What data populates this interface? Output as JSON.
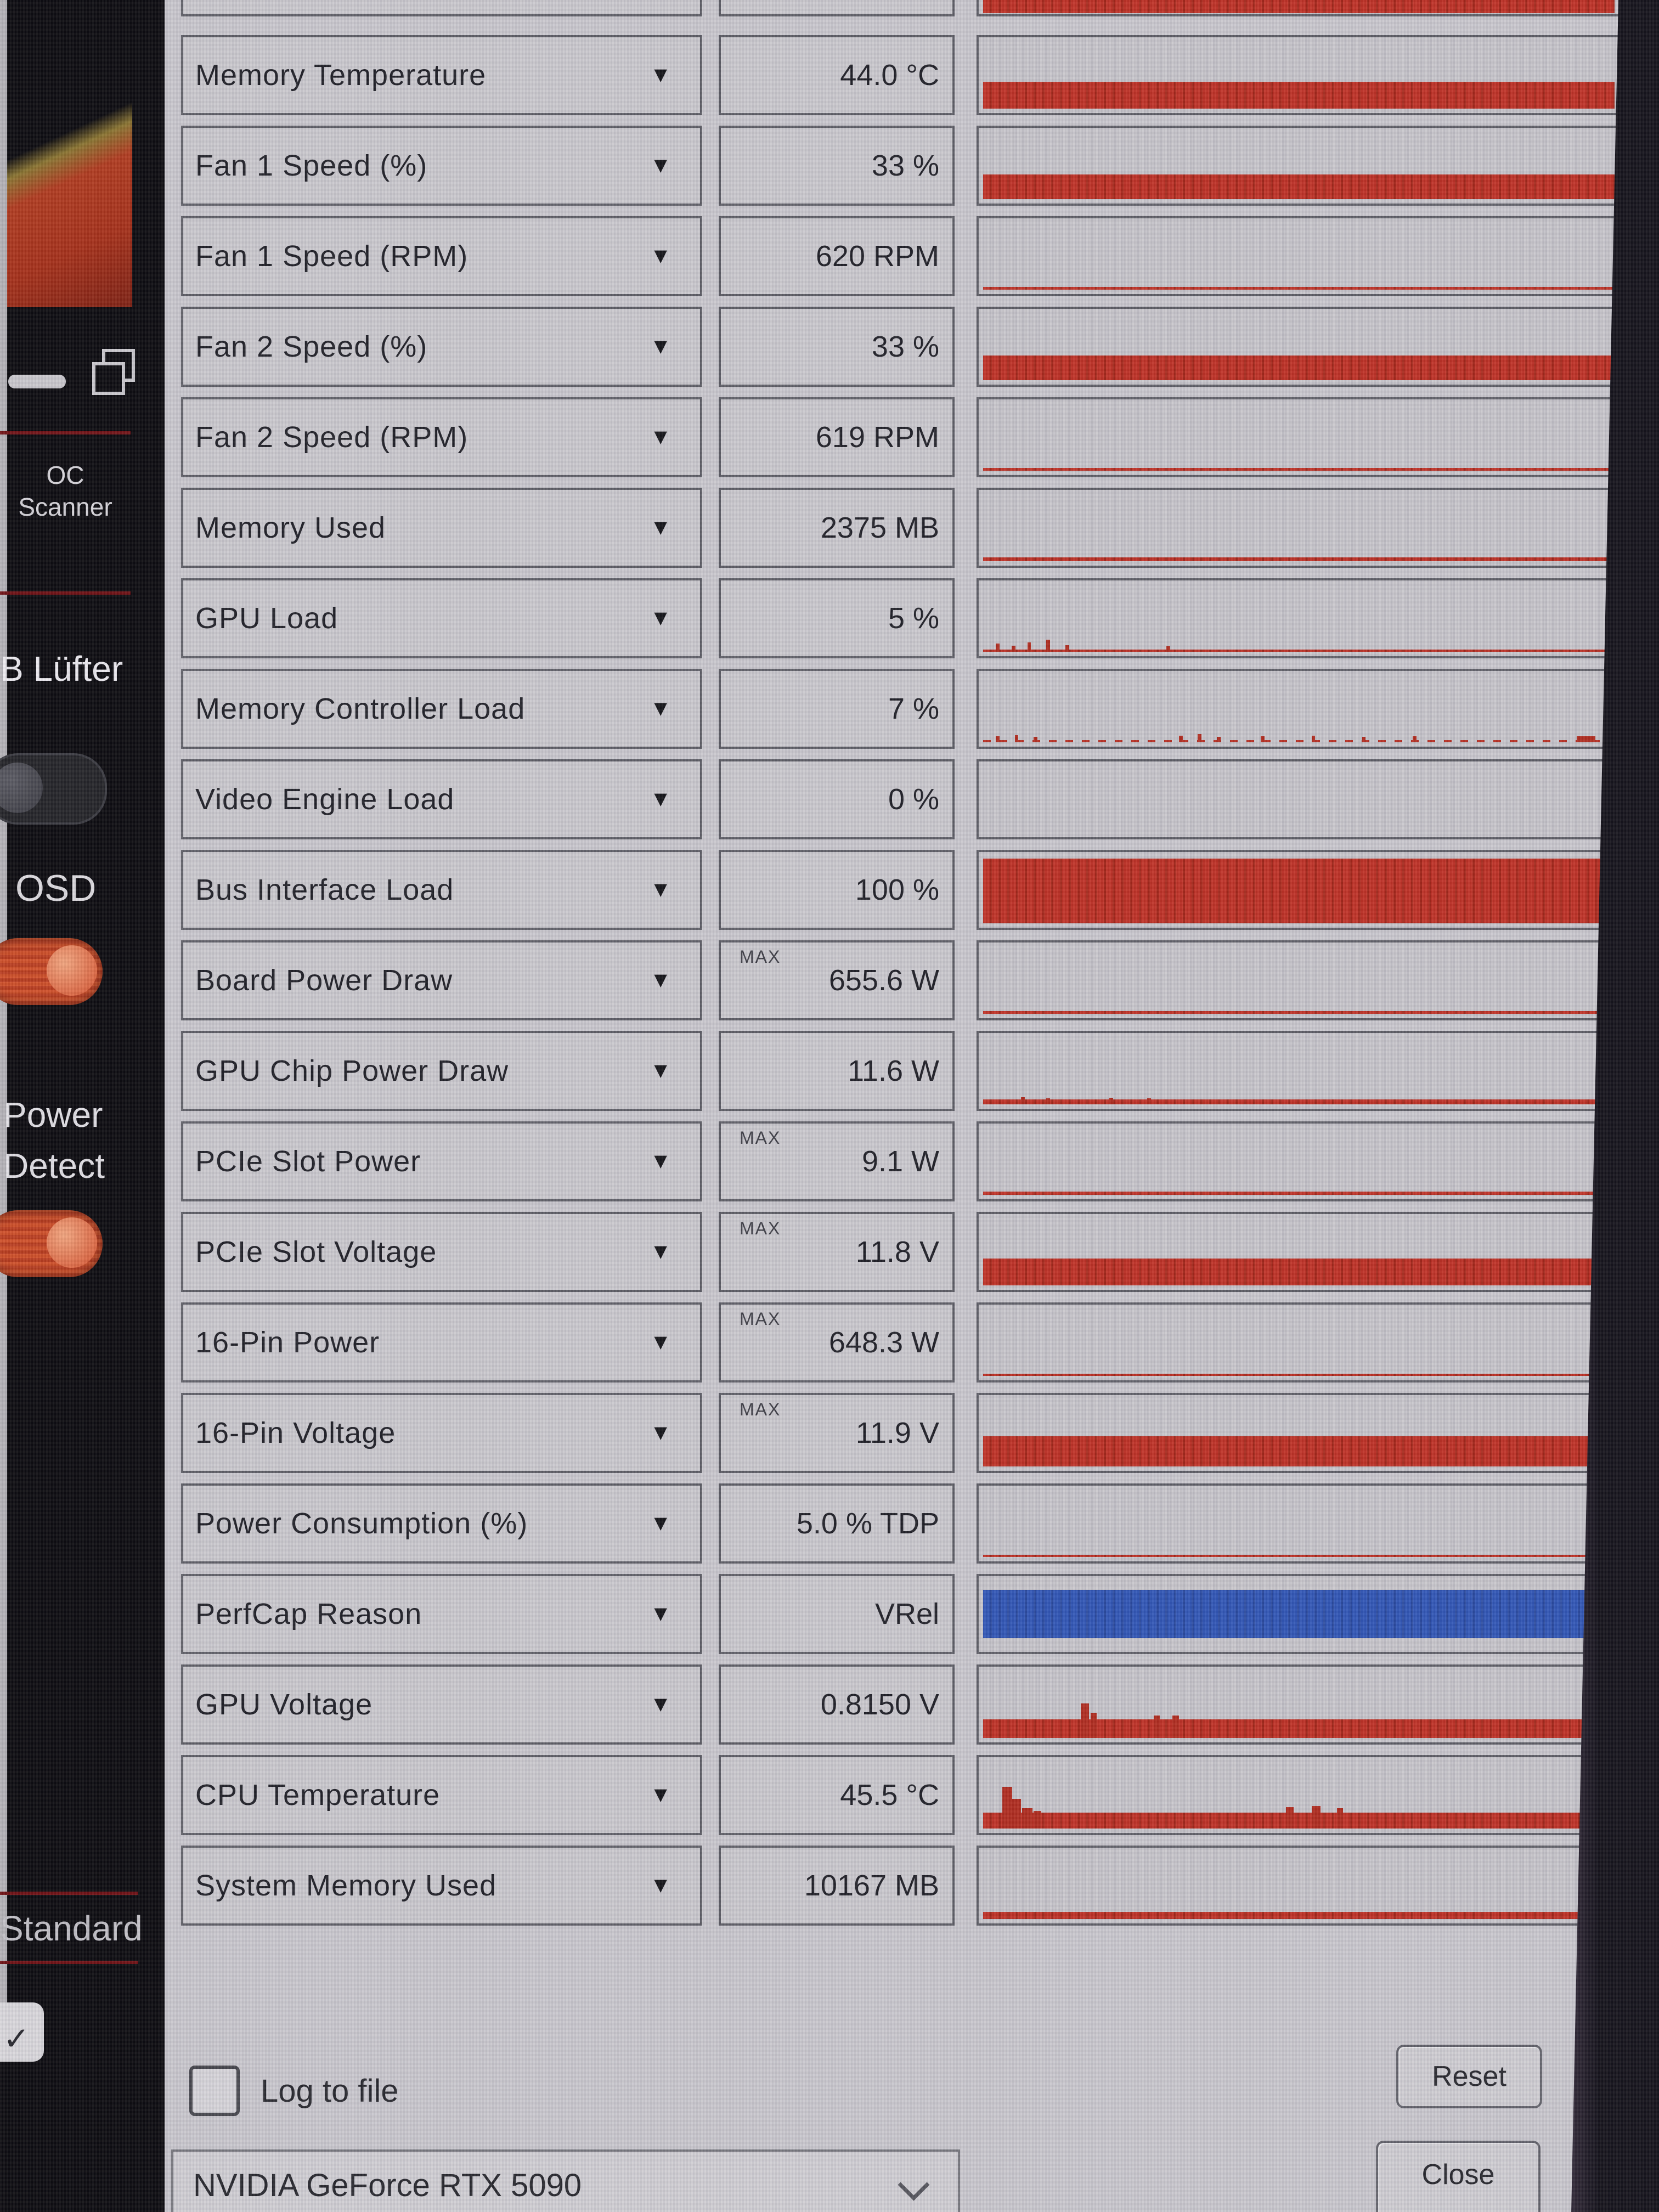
{
  "app": {
    "log_to_file_label": "Log to file",
    "device_selector_value": "NVIDIA GeForce RTX 5090",
    "reset_button_label": "Reset",
    "close_button_label": "Close"
  },
  "sidebar": {
    "oc_scanner_line1": "OC",
    "oc_scanner_line2": "Scanner",
    "lufter_label": "B Lüfter",
    "osd_label": "OSD",
    "power_detect_line1": "Power",
    "power_detect_line2": "Detect",
    "standard_label": "Standard",
    "check_icon_glyph": "✓",
    "separator_color": "#701114",
    "toggle_on_color": "#c8441f"
  },
  "colors": {
    "bar_red": "#bf3125",
    "bar_blue": "#3156b6",
    "window_bg": "#c9c7cd",
    "cell_border": "#5e5e66"
  },
  "sensors": {
    "value_max_tag": "MAX",
    "dropdown_icon": "▼",
    "rows": [
      {
        "label": "Memory Temperature",
        "value": "44.0 °C",
        "max": false,
        "graph": {
          "color": "red",
          "fill": 40,
          "spikes": []
        }
      },
      {
        "label": "Fan 1 Speed (%)",
        "value": "33 %",
        "max": false,
        "graph": {
          "color": "red",
          "fill": 37,
          "spikes": []
        }
      },
      {
        "label": "Fan 1 Speed (RPM)",
        "value": "620 RPM",
        "max": false,
        "graph": {
          "color": "red",
          "fill": 4,
          "spikes": []
        }
      },
      {
        "label": "Fan 2 Speed (%)",
        "value": "33 %",
        "max": false,
        "graph": {
          "color": "red",
          "fill": 37,
          "spikes": []
        }
      },
      {
        "label": "Fan 2 Speed (RPM)",
        "value": "619 RPM",
        "max": false,
        "graph": {
          "color": "red",
          "fill": 4,
          "spikes": []
        }
      },
      {
        "label": "Memory Used",
        "value": "2375 MB",
        "max": false,
        "graph": {
          "color": "red",
          "fill": 6,
          "spikes": []
        }
      },
      {
        "label": "GPU Load",
        "value": "5 %",
        "max": false,
        "graph": {
          "color": "red",
          "fill": 3,
          "spikes": [
            {
              "x": 2,
              "h": 12
            },
            {
              "x": 4.5,
              "h": 9
            },
            {
              "x": 7,
              "h": 14
            },
            {
              "x": 10,
              "h": 18
            },
            {
              "x": 13,
              "h": 10
            },
            {
              "x": 29,
              "h": 8
            }
          ]
        }
      },
      {
        "label": "Memory Controller Load",
        "value": "7 %",
        "max": false,
        "graph": {
          "color": "red",
          "fill": 3,
          "dashed": true,
          "spikes": [
            {
              "x": 2,
              "h": 9
            },
            {
              "x": 5,
              "h": 11
            },
            {
              "x": 8,
              "h": 8
            },
            {
              "x": 31,
              "h": 10
            },
            {
              "x": 34,
              "h": 12
            },
            {
              "x": 37,
              "h": 8
            },
            {
              "x": 44,
              "h": 9
            },
            {
              "x": 52,
              "h": 10
            },
            {
              "x": 60,
              "h": 8
            },
            {
              "x": 68,
              "h": 9
            },
            {
              "x": 94,
              "h": 9,
              "w": 3
            }
          ]
        }
      },
      {
        "label": "Video Engine Load",
        "value": "0 %",
        "max": false,
        "graph": {
          "color": "red",
          "fill": 0,
          "spikes": []
        }
      },
      {
        "label": "Bus Interface Load",
        "value": "100 %",
        "max": false,
        "graph": {
          "color": "red",
          "fill": 97,
          "spikes": []
        }
      },
      {
        "label": "Board Power Draw",
        "value": "655.6 W",
        "max": true,
        "graph": {
          "color": "red",
          "fill": 4,
          "spikes": []
        }
      },
      {
        "label": "GPU Chip Power Draw",
        "value": "11.6 W",
        "max": false,
        "graph": {
          "color": "red",
          "fill": 7,
          "spikes": [
            {
              "x": 6,
              "h": 11
            },
            {
              "x": 10,
              "h": 9
            },
            {
              "x": 20,
              "h": 10
            },
            {
              "x": 26,
              "h": 9
            }
          ]
        }
      },
      {
        "label": "PCIe Slot Power",
        "value": "9.1 W",
        "max": true,
        "graph": {
          "color": "red",
          "fill": 5,
          "spikes": []
        }
      },
      {
        "label": "PCIe Slot Voltage",
        "value": "11.8 V",
        "max": true,
        "graph": {
          "color": "red",
          "fill": 40,
          "spikes": []
        }
      },
      {
        "label": "16-Pin Power",
        "value": "648.3 W",
        "max": true,
        "graph": {
          "color": "red",
          "fill": 3,
          "spikes": []
        }
      },
      {
        "label": "16-Pin Voltage",
        "value": "11.9 V",
        "max": true,
        "graph": {
          "color": "red",
          "fill": 45,
          "spikes": []
        }
      },
      {
        "label": "Power Consumption (%)",
        "value": "5.0 % TDP",
        "max": false,
        "graph": {
          "color": "red",
          "fill": 3,
          "spikes": []
        }
      },
      {
        "label": "PerfCap Reason",
        "value": "VRel",
        "max": false,
        "graph": {
          "color": "blue",
          "fill": 72,
          "lift": 14,
          "spikes": []
        }
      },
      {
        "label": "GPU Voltage",
        "value": "0.8150 V",
        "max": false,
        "graph": {
          "color": "red",
          "fill": 28,
          "spikes": [
            {
              "x": 15.5,
              "h": 52,
              "w": 1.3
            },
            {
              "x": 17,
              "h": 38,
              "w": 1
            },
            {
              "x": 27,
              "h": 34,
              "w": 1
            },
            {
              "x": 30,
              "h": 34,
              "w": 1
            }
          ]
        }
      },
      {
        "label": "CPU Temperature",
        "value": "45.5 °C",
        "max": false,
        "graph": {
          "color": "red",
          "fill": 24,
          "spikes": [
            {
              "x": 3,
              "h": 62,
              "w": 1.6
            },
            {
              "x": 4.6,
              "h": 44,
              "w": 1.4
            },
            {
              "x": 6.2,
              "h": 30,
              "w": 1.6
            },
            {
              "x": 8,
              "h": 26,
              "w": 1.2
            },
            {
              "x": 48,
              "h": 32,
              "w": 1.2
            },
            {
              "x": 52,
              "h": 34,
              "w": 1.4
            },
            {
              "x": 56,
              "h": 30,
              "w": 1
            }
          ]
        }
      },
      {
        "label": "System Memory Used",
        "value": "10167 MB",
        "max": false,
        "graph": {
          "color": "red",
          "fill": 11,
          "spikes": []
        }
      }
    ]
  }
}
